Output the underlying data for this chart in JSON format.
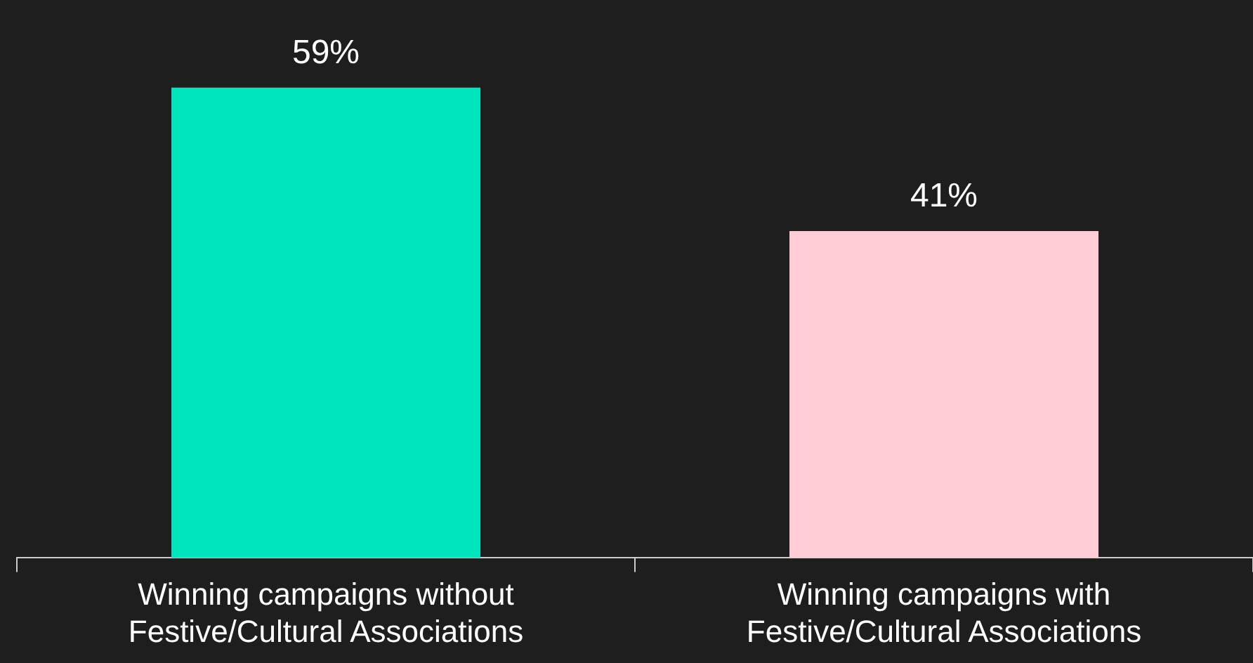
{
  "chart_data": {
    "type": "bar",
    "categories": [
      "Winning campaigns without Festive/Cultural Associations",
      "Winning campaigns with Festive/Cultural Associations"
    ],
    "values": [
      59,
      41
    ],
    "colors": [
      "#00e5be",
      "#ffccd5"
    ],
    "value_labels": [
      "59%",
      "41%"
    ],
    "grid": false,
    "legend": false,
    "tick_labels": "x"
  }
}
